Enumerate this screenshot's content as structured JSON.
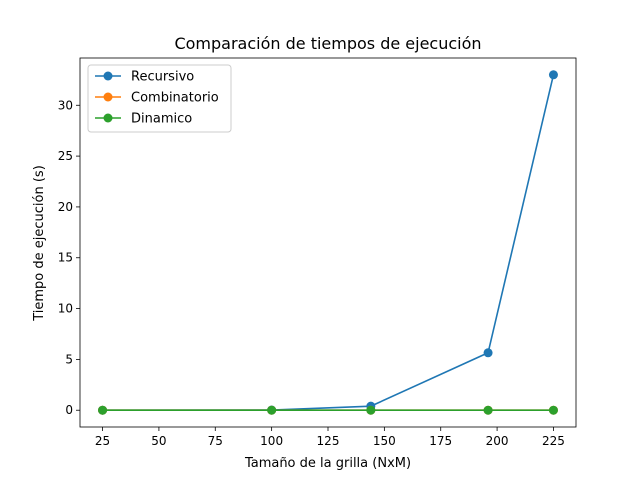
{
  "chart_data": {
    "type": "line",
    "title": "Comparación de tiempos de ejecución",
    "xlabel": "Tamaño de la grilla (NxM)",
    "ylabel": "Tiempo de ejecución (s)",
    "xlim": [
      15,
      235
    ],
    "ylim": [
      -1.65,
      34.65
    ],
    "xticks": [
      25,
      50,
      75,
      100,
      125,
      150,
      175,
      200,
      225
    ],
    "yticks": [
      0,
      5,
      10,
      15,
      20,
      25,
      30
    ],
    "x": [
      25,
      100,
      144,
      196,
      225
    ],
    "series": [
      {
        "name": "Recursivo",
        "color": "#1f77b4",
        "values": [
          0.0,
          0.02,
          0.4,
          5.65,
          33.0
        ]
      },
      {
        "name": "Combinatorio",
        "color": "#ff7f0e",
        "values": [
          0.0,
          0.0,
          0.0,
          0.0,
          0.0
        ]
      },
      {
        "name": "Dinamico",
        "color": "#2ca02c",
        "values": [
          0.0,
          0.0,
          0.0,
          0.0,
          0.0
        ]
      }
    ],
    "grid": false,
    "legend_position": "top-left"
  }
}
